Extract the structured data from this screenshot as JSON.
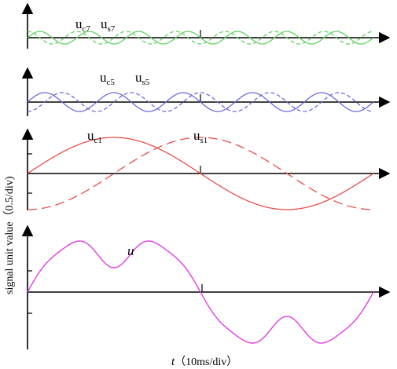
{
  "axis_labels": {
    "y": "signal unit value（0.5/div)",
    "x_var": "t",
    "x_unit": "（10ms/div）"
  },
  "panels": [
    {
      "id": "p7",
      "labels": [
        {
          "main": "u",
          "sub": "c7"
        },
        {
          "main": "u",
          "sub": "s7"
        }
      ],
      "color": "#5fd35f"
    },
    {
      "id": "p5",
      "labels": [
        {
          "main": "u",
          "sub": "c5"
        },
        {
          "main": "u",
          "sub": "s5"
        }
      ],
      "color": "#6b6bdf"
    },
    {
      "id": "p1",
      "labels": [
        {
          "main": "u",
          "sub": "c1"
        },
        {
          "main": "u",
          "sub": "s1"
        }
      ],
      "color": "#e8504a"
    },
    {
      "id": "psum",
      "labels": [
        {
          "main": "u",
          "sub": ""
        }
      ],
      "color": "#e23de2"
    }
  ],
  "colors": {
    "axis": "#000000"
  }
}
